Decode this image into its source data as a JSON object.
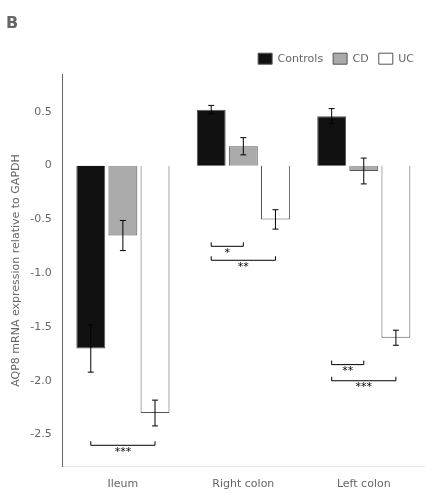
{
  "chart_data": {
    "type": "bar",
    "title": "B",
    "ylabel": "AQP8 mRNA expression relative to GAPDH",
    "categories": [
      "Ileum",
      "Right colon",
      "Left colon"
    ],
    "series": [
      {
        "name": "Controls",
        "color": "#111111",
        "values": [
          -1.7,
          0.52,
          0.46
        ],
        "errors": [
          0.22,
          0.04,
          0.07
        ]
      },
      {
        "name": "CD",
        "color": "#aaaaaa",
        "values": [
          -0.65,
          0.18,
          -0.05
        ],
        "errors": [
          0.14,
          0.08,
          0.12
        ]
      },
      {
        "name": "UC",
        "color": "#ffffff",
        "values": [
          -2.3,
          -0.5,
          -1.6
        ],
        "errors": [
          0.12,
          0.09,
          0.07
        ]
      }
    ],
    "ylim": [
      -2.8,
      0.85
    ],
    "yticks": [
      -2.5,
      {
        "value": -2.0,
        "label": "-2.0"
      },
      -1.5,
      {
        "value": -1.0,
        "label": "-1.0"
      },
      -0.5,
      0,
      0.5
    ],
    "grid": false,
    "legend": "upper right",
    "annotations": [
      {
        "text": "***",
        "category": "Ileum",
        "between": [
          "Controls",
          "UC"
        ],
        "y": -2.6
      },
      {
        "text": "*",
        "category": "Right colon",
        "between": [
          "Controls",
          "CD"
        ],
        "y": -0.75
      },
      {
        "text": "**",
        "category": "Right colon",
        "between": [
          "Controls",
          "UC"
        ],
        "y": -0.88
      },
      {
        "text": "**",
        "category": "Left colon",
        "between": [
          "Controls",
          "CD"
        ],
        "y": -1.85
      },
      {
        "text": "***",
        "category": "Left colon",
        "between": [
          "Controls",
          "UC"
        ],
        "y": -2.0
      }
    ]
  }
}
